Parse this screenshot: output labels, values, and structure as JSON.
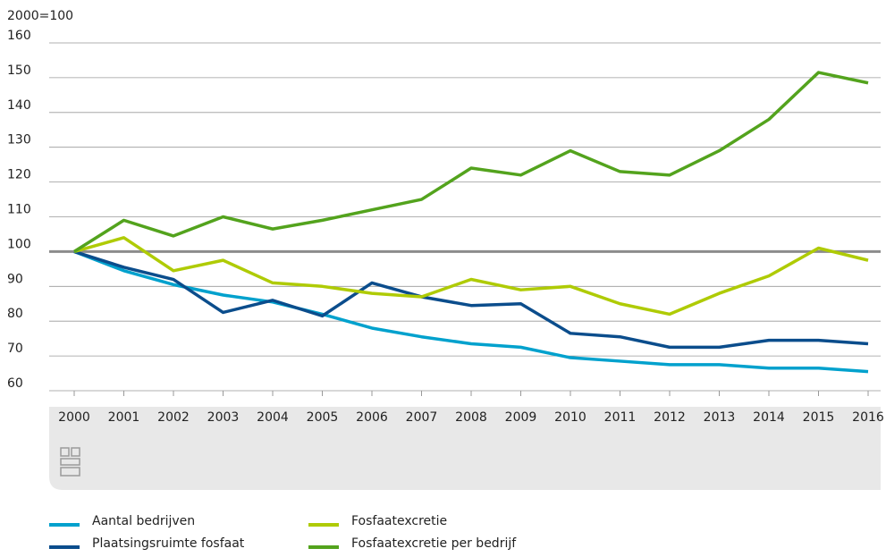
{
  "chart_data": {
    "type": "line",
    "ylabel": "2000=100",
    "x": [
      "2000",
      "2001",
      "2002",
      "2003",
      "2004",
      "2005",
      "2006",
      "2007",
      "2008",
      "2009",
      "2010",
      "2011",
      "2012",
      "2013",
      "2014",
      "2015",
      "2016"
    ],
    "ylim": [
      60,
      160
    ],
    "yticks": [
      60,
      70,
      80,
      90,
      100,
      110,
      120,
      130,
      140,
      150,
      160
    ],
    "grid": true,
    "reference_line": 100,
    "series": [
      {
        "name": "Aantal bedrijven",
        "color": "#00a1cd",
        "values": [
          100,
          94.5,
          90.5,
          87.5,
          85.5,
          82,
          78,
          75.5,
          73.5,
          72.5,
          69.5,
          68.5,
          67.5,
          67.5,
          66.5,
          66.5,
          65.5
        ]
      },
      {
        "name": "Plaatsingsruimte fosfaat",
        "color": "#0b4d8c",
        "values": [
          100,
          95.5,
          92,
          82.5,
          86,
          81.5,
          91,
          87,
          84.5,
          85,
          76.5,
          75.5,
          72.5,
          72.5,
          74.5,
          74.5,
          73.5
        ]
      },
      {
        "name": "Fosfaatexcretie",
        "color": "#afcb05",
        "values": [
          100,
          104,
          94.5,
          97.5,
          91,
          90,
          88,
          87,
          92,
          89,
          90,
          85,
          82,
          88,
          93,
          101,
          97.5
        ]
      },
      {
        "name": "Fosfaatexcretie per bedrijf",
        "color": "#53a31d",
        "values": [
          100,
          109,
          104.5,
          110,
          106.5,
          109,
          112,
          115,
          124,
          122,
          129,
          123,
          122,
          129,
          138,
          151.5,
          148.5
        ]
      }
    ]
  }
}
